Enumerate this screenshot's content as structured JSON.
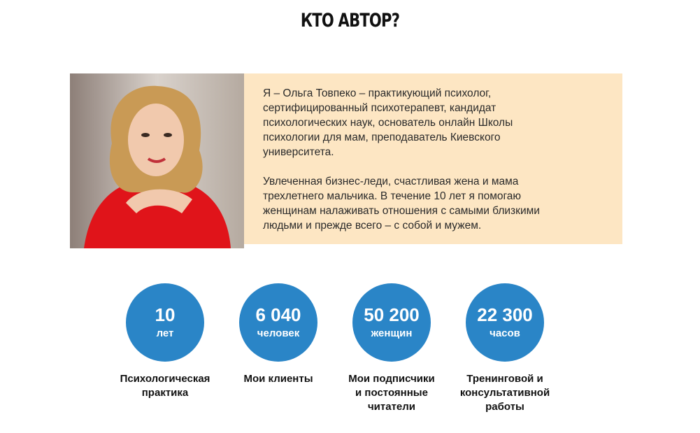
{
  "title": "КТО АВТОР?",
  "bio": {
    "paragraph1": "Я – Ольга Товпеко – практикующий психолог,\nсертифицированный психотерапевт, кандидат\nпсихологических наук, основатель онлайн Школы\nпсихологии для мам, преподаватель Киевского\nуниверситета.",
    "paragraph2": "Увлеченная бизнес-леди, счастливая жена и мама\nтрехлетнего мальчика. В течение 10 лет я помогаю\nженщинам налаживать отношения с самыми близкими\nлюдьми и прежде всего – с собой и мужем."
  },
  "colors": {
    "circle": "#2a85c7",
    "bio_background": "#fde6c3"
  },
  "stats": [
    {
      "number": "10",
      "unit": "лет",
      "label": "Психологическая\nпрактика"
    },
    {
      "number": "6 040",
      "unit": "человек",
      "label": "Мои клиенты"
    },
    {
      "number": "50 200",
      "unit": "женщин",
      "label": "Мои подписчики\nи постоянные\nчитатели"
    },
    {
      "number": "22 300",
      "unit": "часов",
      "label": "Тренинговой и\nконсультативной\nработы"
    }
  ]
}
